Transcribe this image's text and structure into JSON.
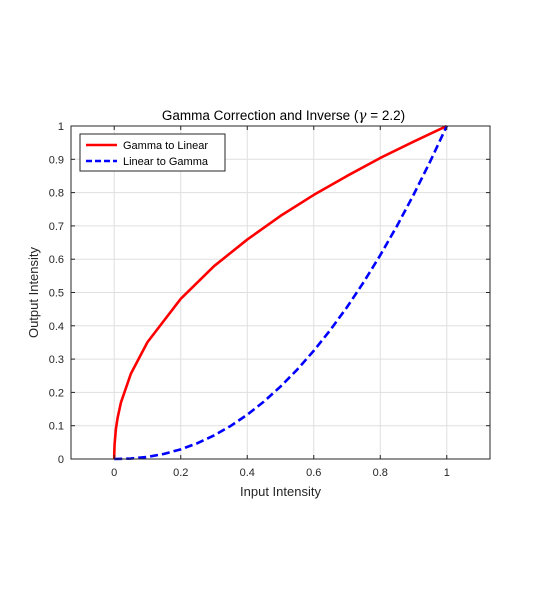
{
  "chart_data": {
    "type": "line",
    "title_prefix": "Gamma Correction and Inverse (",
    "title_symbol": "γ",
    "title_suffix": " = 2.2)",
    "gamma": 2.2,
    "xlabel": "Input Intensity",
    "ylabel": "Output Intensity",
    "xlim": [
      -0.13,
      1.13
    ],
    "ylim": [
      0,
      1
    ],
    "xticks": [
      0,
      0.2,
      0.4,
      0.6,
      0.8,
      1
    ],
    "xtick_labels": [
      "0",
      "0.2",
      "0.4",
      "0.6",
      "0.8",
      "1"
    ],
    "yticks": [
      0,
      0.1,
      0.2,
      0.3,
      0.4,
      0.5,
      0.6,
      0.7,
      0.8,
      0.9,
      1
    ],
    "ytick_labels": [
      "0",
      "0.1",
      "0.2",
      "0.3",
      "0.4",
      "0.5",
      "0.6",
      "0.7",
      "0.8",
      "0.9",
      "1"
    ],
    "grid": true,
    "legend_location": "top-left",
    "series": [
      {
        "name": "Gamma to Linear",
        "color": "#ff0000",
        "line_style": "solid",
        "x": [
          0,
          0.0001,
          0.001,
          0.005,
          0.01,
          0.02,
          0.05,
          0.1,
          0.2,
          0.3,
          0.4,
          0.5,
          0.6,
          0.7,
          0.8,
          0.9,
          1.0
        ],
        "y": [
          0,
          0.015,
          0.043,
          0.09,
          0.123,
          0.169,
          0.256,
          0.351,
          0.481,
          0.579,
          0.659,
          0.73,
          0.793,
          0.85,
          0.904,
          0.953,
          1.0
        ]
      },
      {
        "name": "Linear to Gamma",
        "color": "#0000ff",
        "line_style": "dashed",
        "x": [
          0,
          0.05,
          0.1,
          0.15,
          0.2,
          0.25,
          0.3,
          0.35,
          0.4,
          0.45,
          0.5,
          0.55,
          0.6,
          0.65,
          0.7,
          0.75,
          0.8,
          0.85,
          0.9,
          0.95,
          1.0
        ],
        "y": [
          0,
          0.0014,
          0.0063,
          0.0154,
          0.029,
          0.0474,
          0.0707,
          0.0992,
          0.133,
          0.1723,
          0.2176,
          0.2683,
          0.325,
          0.3877,
          0.456,
          0.5309,
          0.6121,
          0.6994,
          0.7932,
          0.8932,
          1.0
        ]
      }
    ]
  }
}
